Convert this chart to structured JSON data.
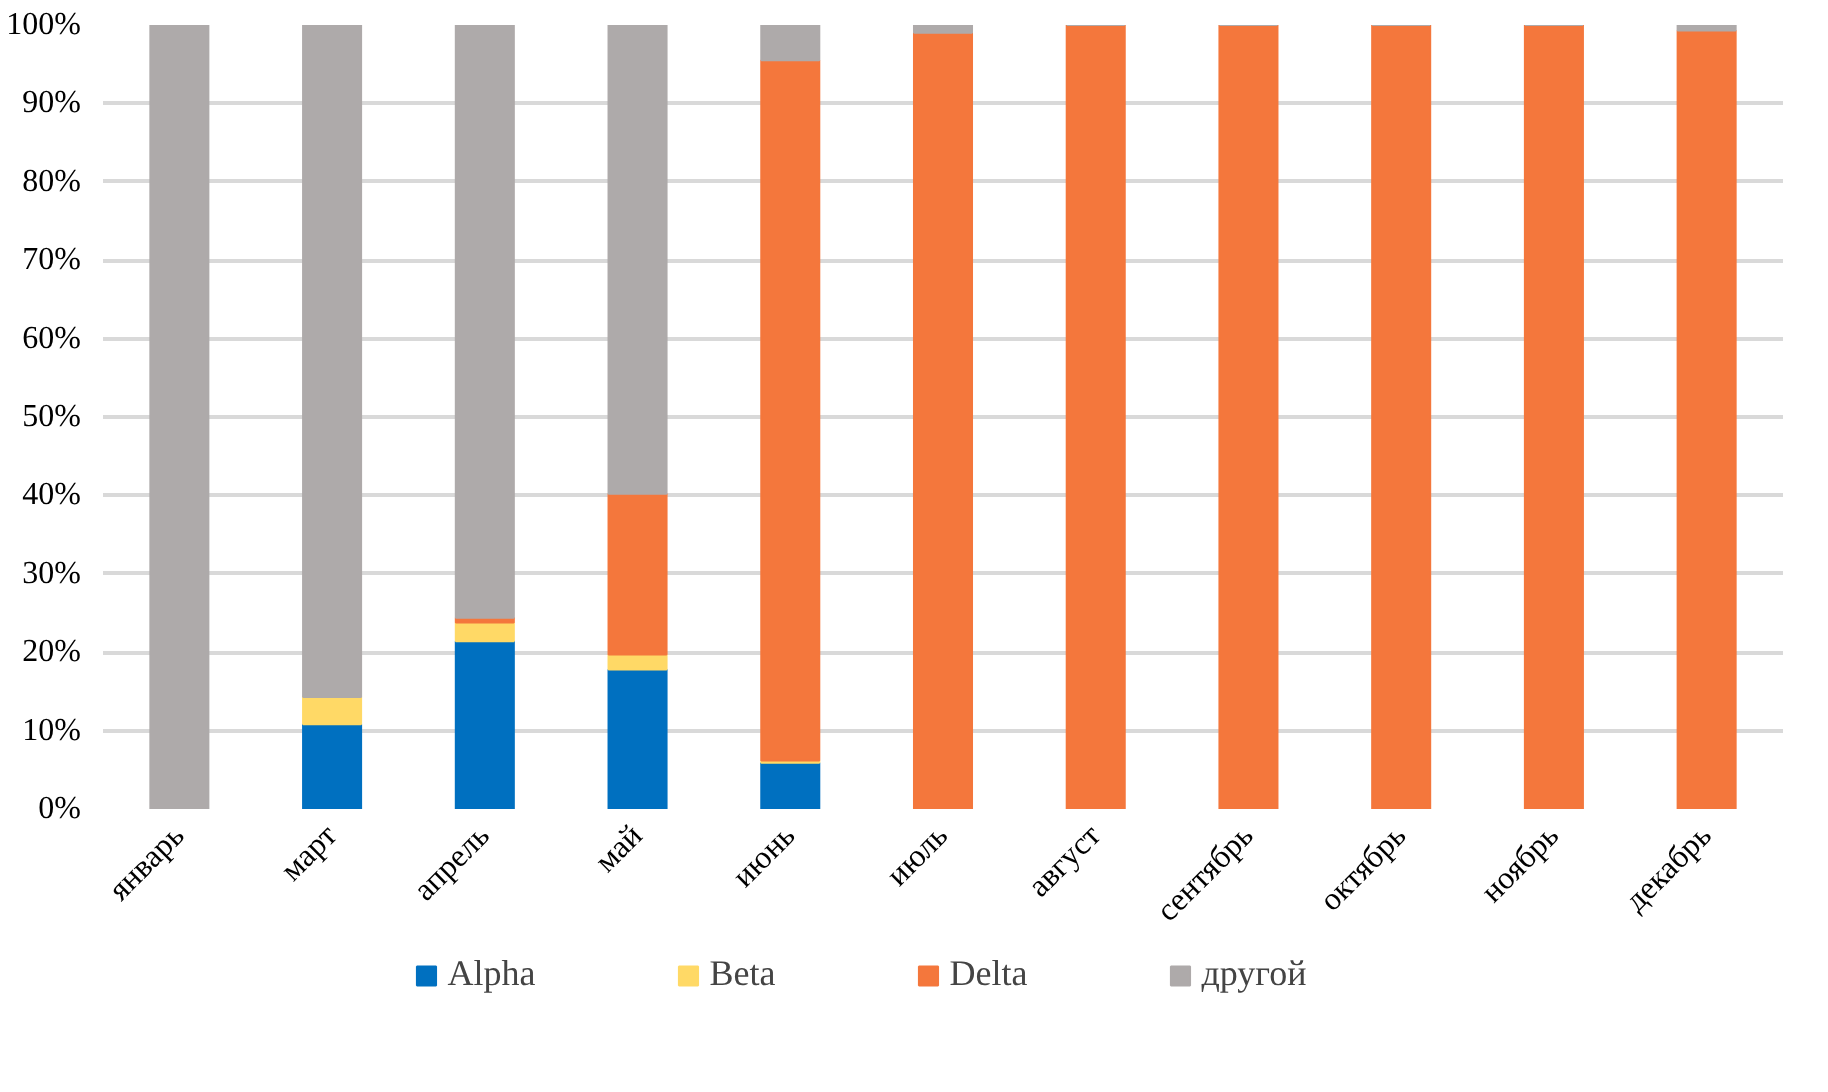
{
  "chart_data": {
    "type": "bar",
    "stacked": true,
    "categories": [
      "январь",
      "март",
      "апрель",
      "май",
      "июнь",
      "июль",
      "август",
      "сентябрь",
      "октябрь",
      "ноябрь",
      "декабрь"
    ],
    "series": [
      {
        "name": "Alpha",
        "color": "#0070c0",
        "values": [
          0,
          10.8,
          21.4,
          17.8,
          5.9,
          0,
          0,
          0,
          0,
          0,
          0
        ]
      },
      {
        "name": "Beta",
        "color": "#ffd966",
        "values": [
          0,
          3.5,
          2.4,
          1.9,
          0.3,
          0,
          0,
          0,
          0,
          0,
          0
        ]
      },
      {
        "name": "Delta",
        "color": "#f4773c",
        "values": [
          0,
          0,
          0.6,
          20.5,
          89.3,
          99,
          100,
          100,
          100,
          100,
          99.3
        ]
      },
      {
        "name": "другой",
        "color": "#aeaaaa",
        "values": [
          100,
          85.7,
          75.6,
          59.8,
          4.5,
          1,
          0,
          0,
          0,
          0,
          0.7
        ]
      }
    ],
    "ylim": [
      0,
      100
    ],
    "yticks": [
      {
        "value": 0,
        "label": "0%"
      },
      {
        "value": 10,
        "label": "10%"
      },
      {
        "value": 20,
        "label": "20%"
      },
      {
        "value": 30,
        "label": "30%"
      },
      {
        "value": 40,
        "label": "40%"
      },
      {
        "value": 50,
        "label": "50%"
      },
      {
        "value": 60,
        "label": "60%"
      },
      {
        "value": 70,
        "label": "70%"
      },
      {
        "value": 80,
        "label": "80%"
      },
      {
        "value": 90,
        "label": "90%"
      },
      {
        "value": 100,
        "label": "100%"
      }
    ],
    "grid": "y",
    "legend": "bottom"
  }
}
